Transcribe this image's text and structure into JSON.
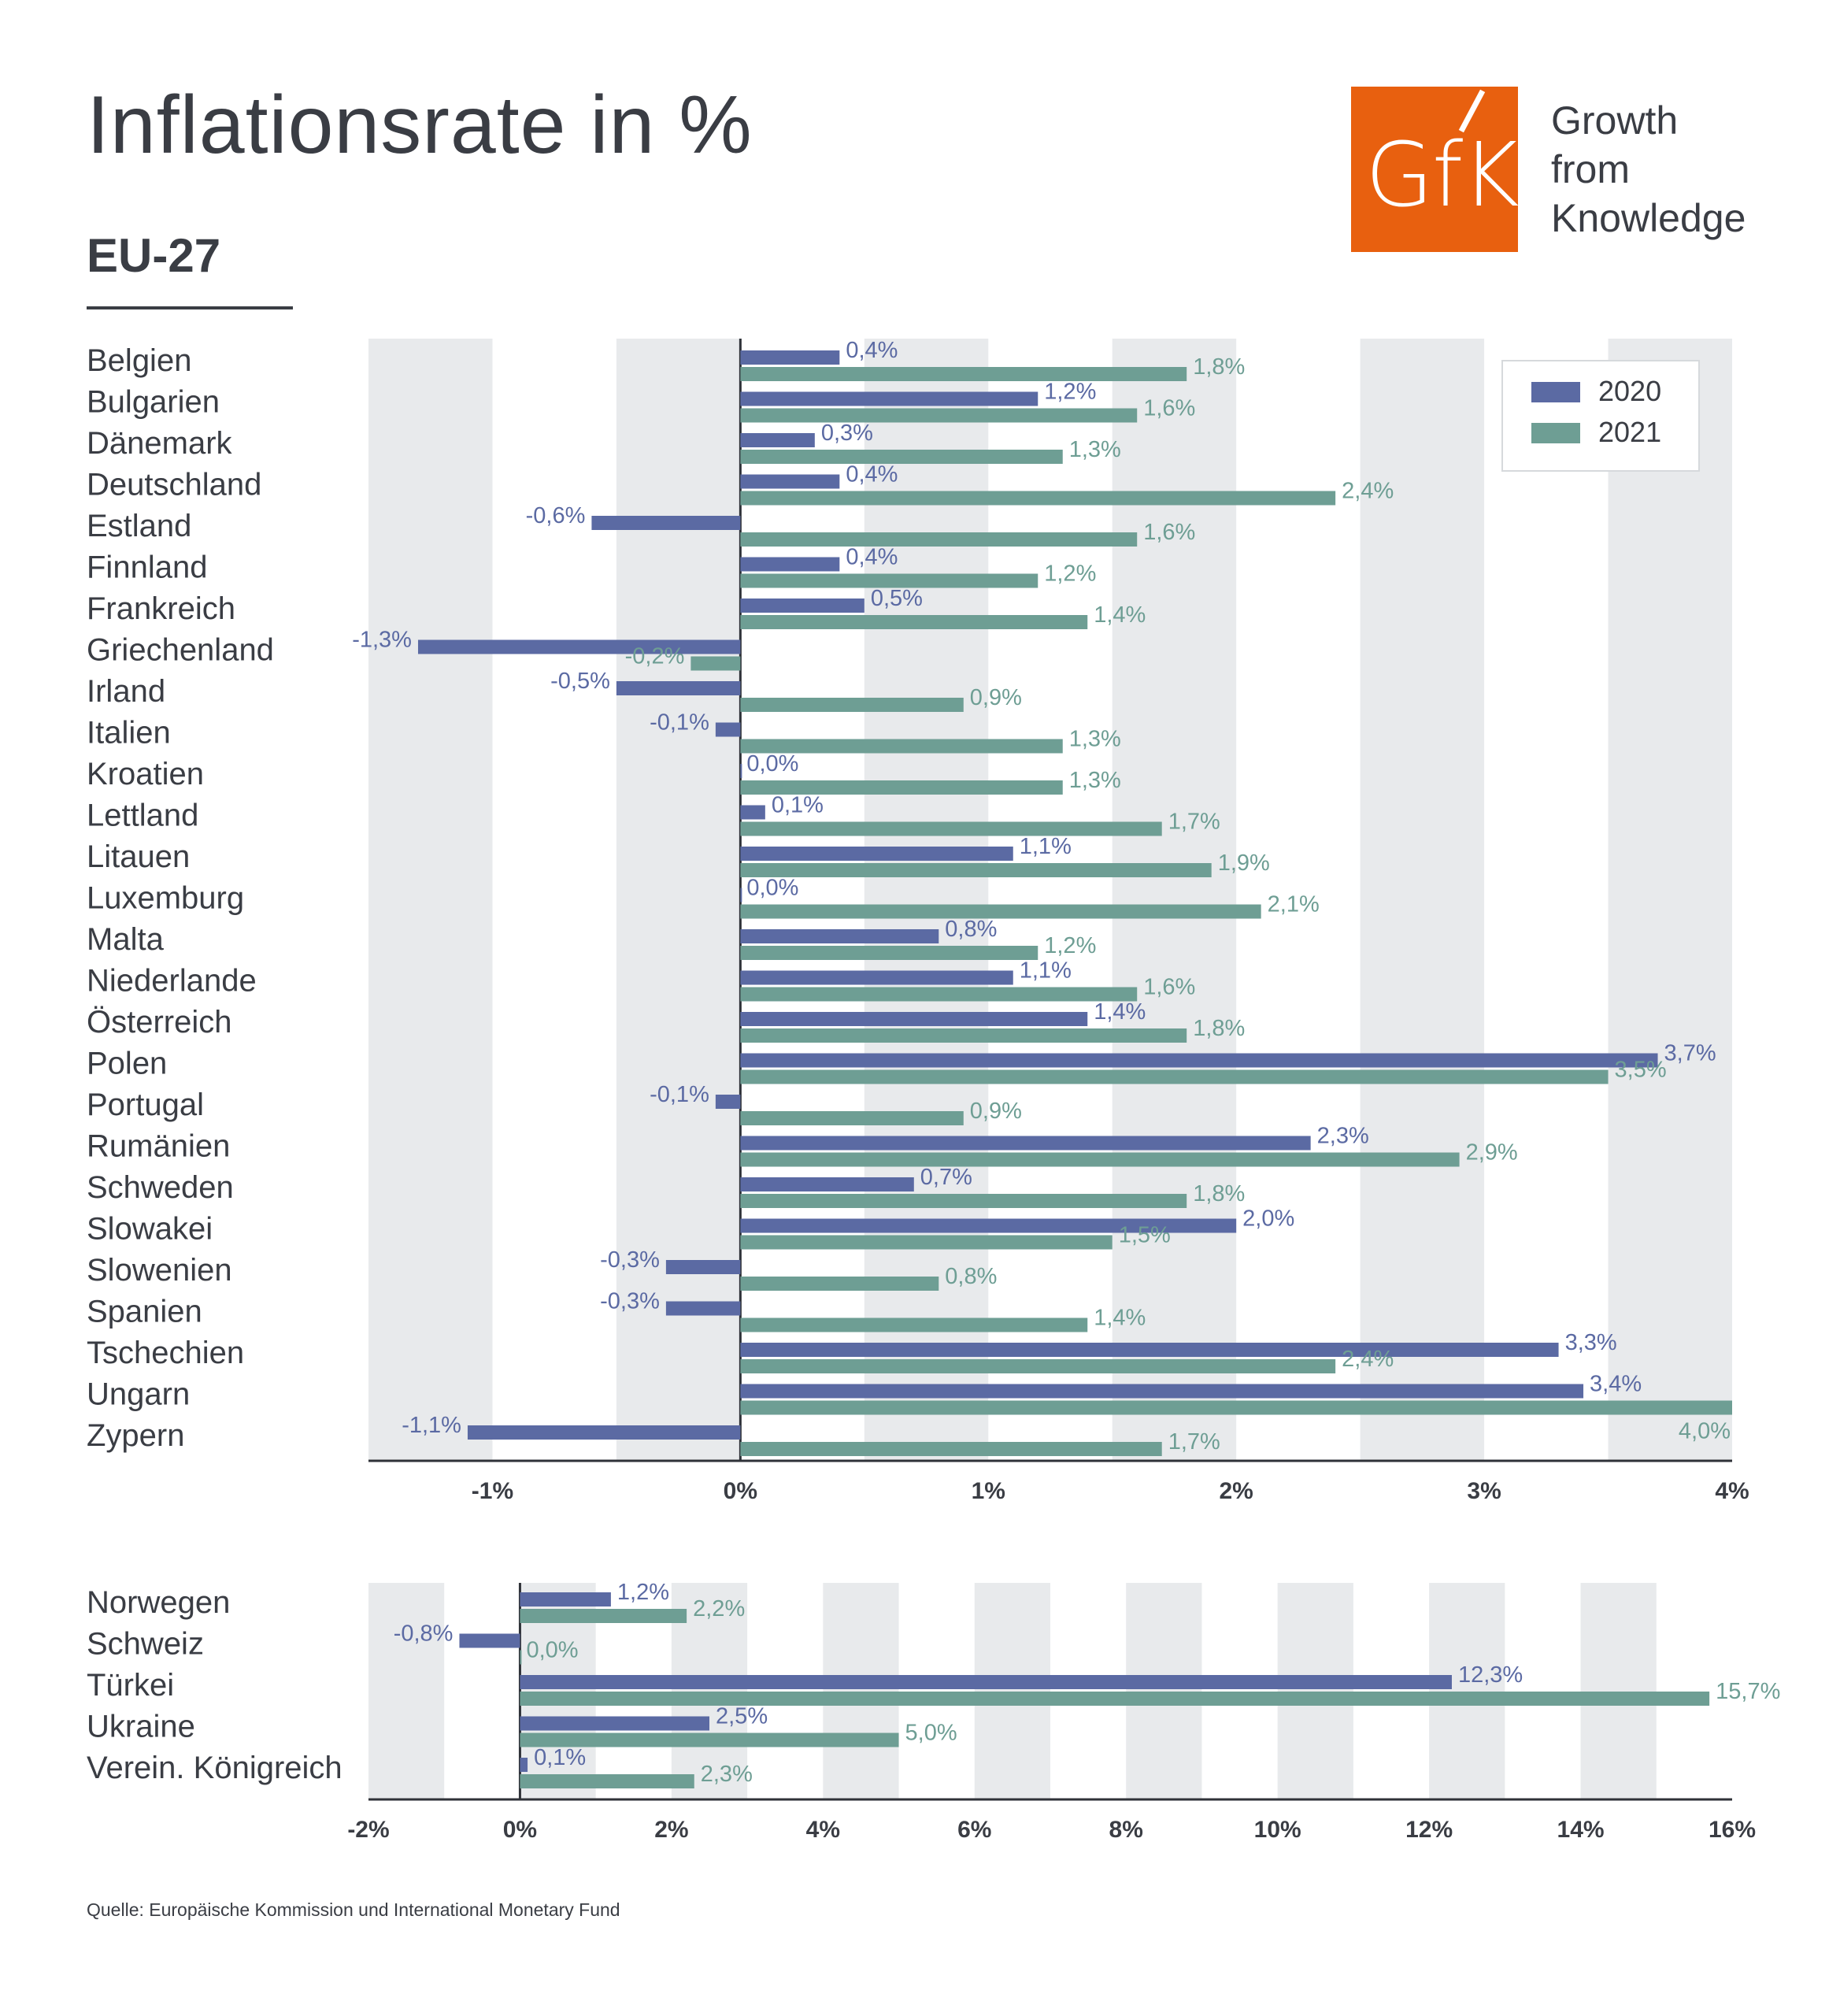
{
  "title": "Inflationsrate in %",
  "subtitle": "EU-27",
  "source": "Quelle: Europäische Kommission und International Monetary Fund",
  "logo": {
    "text": "GfK",
    "tagline": [
      "Growth",
      "from",
      "Knowledge"
    ],
    "color": "#e8600f"
  },
  "colors": {
    "2020": "#5b6aa3",
    "2021": "#6e9e94",
    "band": "#e8eaec",
    "text": "#3a3d44"
  },
  "chart_data": [
    {
      "type": "bar",
      "orientation": "horizontal",
      "title": "EU-27",
      "categories": [
        "Belgien",
        "Bulgarien",
        "Dänemark",
        "Deutschland",
        "Estland",
        "Finnland",
        "Frankreich",
        "Griechenland",
        "Irland",
        "Italien",
        "Kroatien",
        "Lettland",
        "Litauen",
        "Luxemburg",
        "Malta",
        "Niederlande",
        "Österreich",
        "Polen",
        "Portugal",
        "Rumänien",
        "Schweden",
        "Slowakei",
        "Slowenien",
        "Spanien",
        "Tschechien",
        "Ungarn",
        "Zypern"
      ],
      "series": [
        {
          "name": "2020",
          "values": [
            0.4,
            1.2,
            0.3,
            0.4,
            -0.6,
            0.4,
            0.5,
            -1.3,
            -0.5,
            -0.1,
            0.0,
            0.1,
            1.1,
            0.0,
            0.8,
            1.1,
            1.4,
            3.7,
            -0.1,
            2.3,
            0.7,
            2.0,
            -0.3,
            -0.3,
            3.3,
            3.4,
            -1.1
          ],
          "labels": [
            "0,4%",
            "1,2%",
            "0,3%",
            "0,4%",
            "-0,6%",
            "0,4%",
            "0,5%",
            "-1,3%",
            "-0,5%",
            "-0,1%",
            "0,0%",
            "0,1%",
            "1,1%",
            "0,0%",
            "0,8%",
            "1,1%",
            "1,4%",
            "3,7%",
            "-0,1%",
            "2,3%",
            "0,7%",
            "2,0%",
            "-0,3%",
            "-0,3%",
            "3,3%",
            "3,4%",
            "-1,1%"
          ]
        },
        {
          "name": "2021",
          "values": [
            1.8,
            1.6,
            1.3,
            2.4,
            1.6,
            1.2,
            1.4,
            -0.2,
            0.9,
            1.3,
            1.3,
            1.7,
            1.9,
            2.1,
            1.2,
            1.6,
            1.8,
            3.5,
            0.9,
            2.9,
            1.8,
            1.5,
            0.8,
            1.4,
            2.4,
            4.0,
            1.7
          ],
          "labels": [
            "1,8%",
            "1,6%",
            "1,3%",
            "2,4%",
            "1,6%",
            "1,2%",
            "1,4%",
            "-0,2%",
            "0,9%",
            "1,3%",
            "1,3%",
            "1,7%",
            "1,9%",
            "2,1%",
            "1,2%",
            "1,6%",
            "1,8%",
            "3,5%",
            "0,9%",
            "2,9%",
            "1,8%",
            "1,5%",
            "0,8%",
            "1,4%",
            "2,4%",
            "4,0%",
            "1,7%"
          ]
        }
      ],
      "xlim": [
        -1.5,
        4
      ],
      "ticks": [
        -1,
        0,
        1,
        2,
        3,
        4
      ],
      "tick_labels": [
        "-1%",
        "0%",
        "1%",
        "2%",
        "3%",
        "4%"
      ],
      "grid": "alternating-bands",
      "legend": {
        "placement": "top-right",
        "entries": [
          "2020",
          "2021"
        ]
      }
    },
    {
      "type": "bar",
      "orientation": "horizontal",
      "categories": [
        "Norwegen",
        "Schweiz",
        "Türkei",
        "Ukraine",
        "Verein. Königreich"
      ],
      "series": [
        {
          "name": "2020",
          "values": [
            1.2,
            -0.8,
            12.3,
            2.5,
            0.1
          ],
          "labels": [
            "1,2%",
            "-0,8%",
            "12,3%",
            "2,5%",
            "0,1%"
          ]
        },
        {
          "name": "2021",
          "values": [
            2.2,
            0.0,
            15.7,
            5.0,
            2.3
          ],
          "labels": [
            "2,2%",
            "0,0%",
            "15,7%",
            "5,0%",
            "2,3%"
          ]
        }
      ],
      "xlim": [
        -2,
        16
      ],
      "ticks": [
        -2,
        0,
        2,
        4,
        6,
        8,
        10,
        12,
        14,
        16
      ],
      "tick_labels": [
        "-2%",
        "0%",
        "2%",
        "4%",
        "6%",
        "8%",
        "10%",
        "12%",
        "14%",
        "16%"
      ],
      "grid": "alternating-bands"
    }
  ]
}
